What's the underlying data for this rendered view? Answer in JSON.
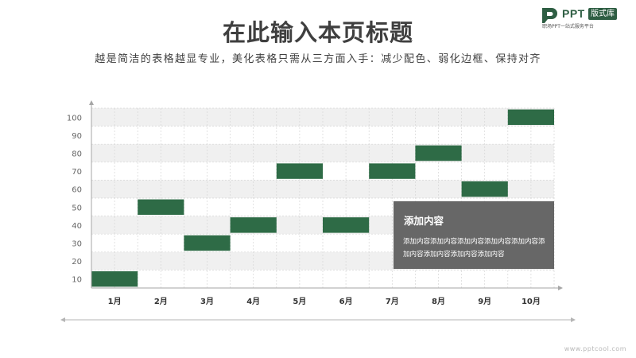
{
  "title": "在此输入本页标题",
  "subtitle": "越是简洁的表格越显专业，美化表格只需从三方面入手：减少配色、弱化边框、保持对齐",
  "logo": {
    "brand": "PPT",
    "badge": "版式库",
    "tagline": "职场PPT一站式服务平台"
  },
  "watermark": "www.pptcool.com",
  "info_box": {
    "title": "添加内容",
    "text": "添加内容添加内容添加内容添加内容添加内容添加内容添加内容添加内容添加内容"
  },
  "colors": {
    "bar": "#2e6b46",
    "band": "#f0f0f0",
    "axis": "#a6a6a6",
    "box": "#676767"
  },
  "chart_data": {
    "type": "bar",
    "categories": [
      "1月",
      "2月",
      "3月",
      "4月",
      "5月",
      "6月",
      "7月",
      "8月",
      "9月",
      "10月"
    ],
    "values": [
      10,
      50,
      30,
      40,
      70,
      40,
      70,
      80,
      60,
      100
    ],
    "y_ticks": [
      10,
      20,
      30,
      40,
      50,
      60,
      70,
      80,
      90,
      100
    ],
    "ylim": [
      5,
      105
    ],
    "grid": true
  }
}
